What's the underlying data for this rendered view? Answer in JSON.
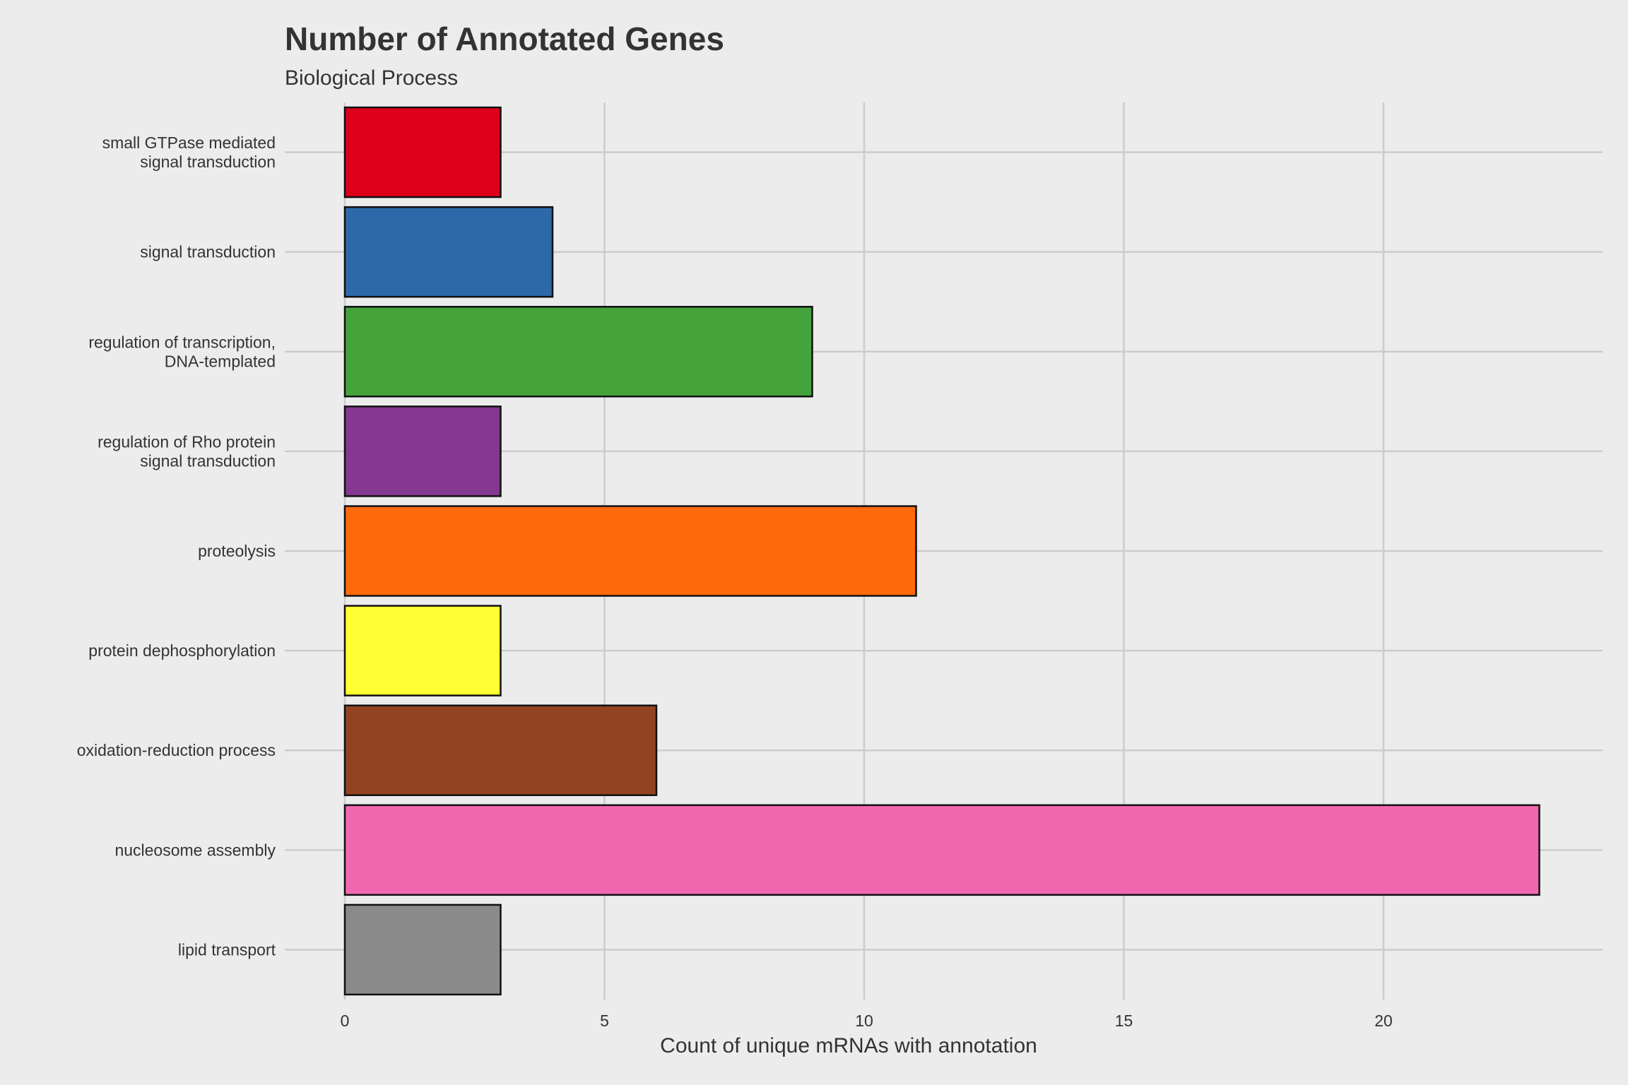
{
  "chart_data": {
    "type": "bar",
    "orientation": "horizontal",
    "title": "Number of Annotated Genes",
    "subtitle": "Biological Process",
    "xlabel": "Count of unique mRNAs with annotation",
    "ylabel": "",
    "xlim": [
      0,
      24
    ],
    "x_ticks": [
      0,
      5,
      10,
      15,
      20
    ],
    "grid": true,
    "legend": "none",
    "categories": [
      "small GTPase mediated\nsignal transduction",
      "signal transduction",
      "regulation of transcription,\nDNA-templated",
      "regulation of Rho protein\nsignal transduction",
      "proteolysis",
      "protein dephosphorylation",
      "oxidation-reduction process",
      "nucleosome assembly",
      "lipid transport"
    ],
    "values": [
      3,
      4,
      9,
      3,
      11,
      3,
      6,
      23,
      3
    ],
    "colors": [
      "#dc001a",
      "#2d69a8",
      "#44a43b",
      "#84388f",
      "#ff6a0e",
      "#ffff33",
      "#924321",
      "#f168b1",
      "#8a8a8a"
    ]
  }
}
